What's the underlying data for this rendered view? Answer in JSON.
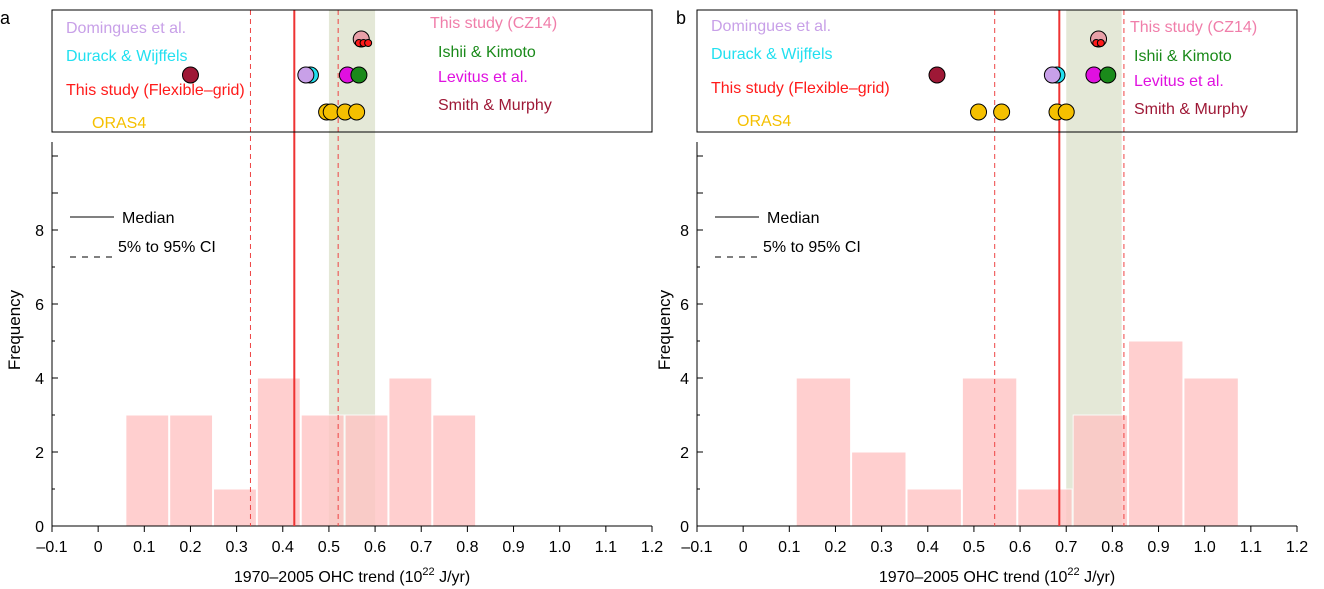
{
  "chart_data": [
    {
      "panel_label": "a",
      "type": "bar",
      "xlabel_main": "1970–2005 OHC trend (10",
      "xlabel_exp": "22",
      "xlabel_tail": " J/yr)",
      "ylabel": "Frequency",
      "xlim": [
        -0.1,
        1.2
      ],
      "ylim": [
        0,
        8
      ],
      "x_ticks": [
        "–0.1",
        "0",
        "0.1",
        "0.2",
        "0.3",
        "0.4",
        "0.5",
        "0.6",
        "0.7",
        "0.8",
        "0.9",
        "1.0",
        "1.1",
        "1.2"
      ],
      "y_ticks": [
        "0",
        "2",
        "4",
        "6",
        "8"
      ],
      "histogram": {
        "color": "#ffc4c4",
        "bins": [
          {
            "x0": 0.06,
            "x1": 0.155,
            "count": 3
          },
          {
            "x0": 0.155,
            "x1": 0.25,
            "count": 3
          },
          {
            "x0": 0.25,
            "x1": 0.345,
            "count": 1
          },
          {
            "x0": 0.345,
            "x1": 0.44,
            "count": 4
          },
          {
            "x0": 0.44,
            "x1": 0.535,
            "count": 3
          },
          {
            "x0": 0.535,
            "x1": 0.63,
            "count": 3
          },
          {
            "x0": 0.63,
            "x1": 0.725,
            "count": 4
          },
          {
            "x0": 0.725,
            "x1": 0.82,
            "count": 3
          }
        ]
      },
      "median": 0.425,
      "ci": [
        0.33,
        0.52
      ],
      "obs_range": [
        0.5,
        0.6
      ],
      "legend": {
        "median_label": "Median",
        "ci_label": "5% to 95% CI"
      },
      "datasets_left": [
        {
          "label": "Domingues et al.",
          "color": "#c8a0e8"
        },
        {
          "label": "Durack & Wijffels",
          "color": "#22e0f0"
        },
        {
          "label": "This study (Flexible–grid)",
          "color": "#ff1a1a"
        },
        {
          "label": "ORAS4",
          "color": "#f5c000"
        }
      ],
      "datasets_right": [
        {
          "label": "This study (CZ14)",
          "color": "#f07eaa"
        },
        {
          "label": "Ishii & Kimoto",
          "color": "#1a8a1a"
        },
        {
          "label": "Levitus et al.",
          "color": "#e010e0"
        },
        {
          "label": "Smith & Murphy",
          "color": "#9e1836"
        }
      ],
      "markers": [
        {
          "row": 0,
          "x": 0.57,
          "fill": "#e8a0a8"
        },
        {
          "row": 0,
          "x": 0.565,
          "fill": "#ff1a1a",
          "small": true
        },
        {
          "row": 0,
          "x": 0.575,
          "fill": "#ff1a1a",
          "small": true
        },
        {
          "row": 0,
          "x": 0.585,
          "fill": "#ff1a1a",
          "small": true
        },
        {
          "row": 1,
          "x": 0.2,
          "fill": "#9e1836"
        },
        {
          "row": 1,
          "x": 0.46,
          "fill": "#22e0f0"
        },
        {
          "row": 1,
          "x": 0.45,
          "fill": "#c8a0e8"
        },
        {
          "row": 1,
          "x": 0.54,
          "fill": "#e010e0"
        },
        {
          "row": 1,
          "x": 0.565,
          "fill": "#1a8a1a"
        },
        {
          "row": 2,
          "x": 0.495,
          "fill": "#f5c000"
        },
        {
          "row": 2,
          "x": 0.505,
          "fill": "#f5c000"
        },
        {
          "row": 2,
          "x": 0.535,
          "fill": "#f5c000"
        },
        {
          "row": 2,
          "x": 0.56,
          "fill": "#f5c000"
        }
      ]
    },
    {
      "panel_label": "b",
      "type": "bar",
      "xlabel_main": "1970–2005 OHC trend (10",
      "xlabel_exp": "22",
      "xlabel_tail": " J/yr)",
      "ylabel": "Frequency",
      "xlim": [
        -0.1,
        1.2
      ],
      "ylim": [
        0,
        8
      ],
      "x_ticks": [
        "–0.1",
        "0",
        "0.1",
        "0.2",
        "0.3",
        "0.4",
        "0.5",
        "0.6",
        "0.7",
        "0.8",
        "0.9",
        "1.0",
        "1.1",
        "1.2"
      ],
      "y_ticks": [
        "0",
        "2",
        "4",
        "6",
        "8"
      ],
      "histogram": {
        "color": "#ffc4c4",
        "bins": [
          {
            "x0": 0.115,
            "x1": 0.235,
            "count": 4
          },
          {
            "x0": 0.235,
            "x1": 0.355,
            "count": 2
          },
          {
            "x0": 0.355,
            "x1": 0.475,
            "count": 1
          },
          {
            "x0": 0.475,
            "x1": 0.595,
            "count": 4
          },
          {
            "x0": 0.595,
            "x1": 0.715,
            "count": 1
          },
          {
            "x0": 0.715,
            "x1": 0.835,
            "count": 3
          },
          {
            "x0": 0.835,
            "x1": 0.955,
            "count": 5
          },
          {
            "x0": 0.955,
            "x1": 1.075,
            "count": 4
          }
        ]
      },
      "median": 0.685,
      "ci": [
        0.545,
        0.825
      ],
      "obs_range": [
        0.7,
        0.82
      ],
      "legend": {
        "median_label": "Median",
        "ci_label": "5% to 95% CI"
      },
      "datasets_left": [
        {
          "label": "Domingues et al.",
          "color": "#c8a0e8"
        },
        {
          "label": "Durack & Wijffels",
          "color": "#22e0f0"
        },
        {
          "label": "This study (Flexible–grid)",
          "color": "#ff1a1a"
        },
        {
          "label": "ORAS4",
          "color": "#f5c000"
        }
      ],
      "datasets_right": [
        {
          "label": "This study (CZ14)",
          "color": "#f07eaa"
        },
        {
          "label": "Ishii & Kimoto",
          "color": "#1a8a1a"
        },
        {
          "label": "Levitus et al.",
          "color": "#e010e0"
        },
        {
          "label": "Smith & Murphy",
          "color": "#9e1836"
        }
      ],
      "markers": [
        {
          "row": 0,
          "x": 0.77,
          "fill": "#e8a0a8"
        },
        {
          "row": 0,
          "x": 0.765,
          "fill": "#ff1a1a",
          "small": true
        },
        {
          "row": 0,
          "x": 0.775,
          "fill": "#ff1a1a",
          "small": true
        },
        {
          "row": 1,
          "x": 0.42,
          "fill": "#9e1836"
        },
        {
          "row": 1,
          "x": 0.68,
          "fill": "#22e0f0"
        },
        {
          "row": 1,
          "x": 0.67,
          "fill": "#c8a0e8"
        },
        {
          "row": 1,
          "x": 0.76,
          "fill": "#e010e0"
        },
        {
          "row": 1,
          "x": 0.79,
          "fill": "#1a8a1a"
        },
        {
          "row": 2,
          "x": 0.51,
          "fill": "#f5c000"
        },
        {
          "row": 2,
          "x": 0.56,
          "fill": "#f5c000"
        },
        {
          "row": 2,
          "x": 0.68,
          "fill": "#f5c000"
        },
        {
          "row": 2,
          "x": 0.7,
          "fill": "#f5c000"
        }
      ]
    }
  ]
}
